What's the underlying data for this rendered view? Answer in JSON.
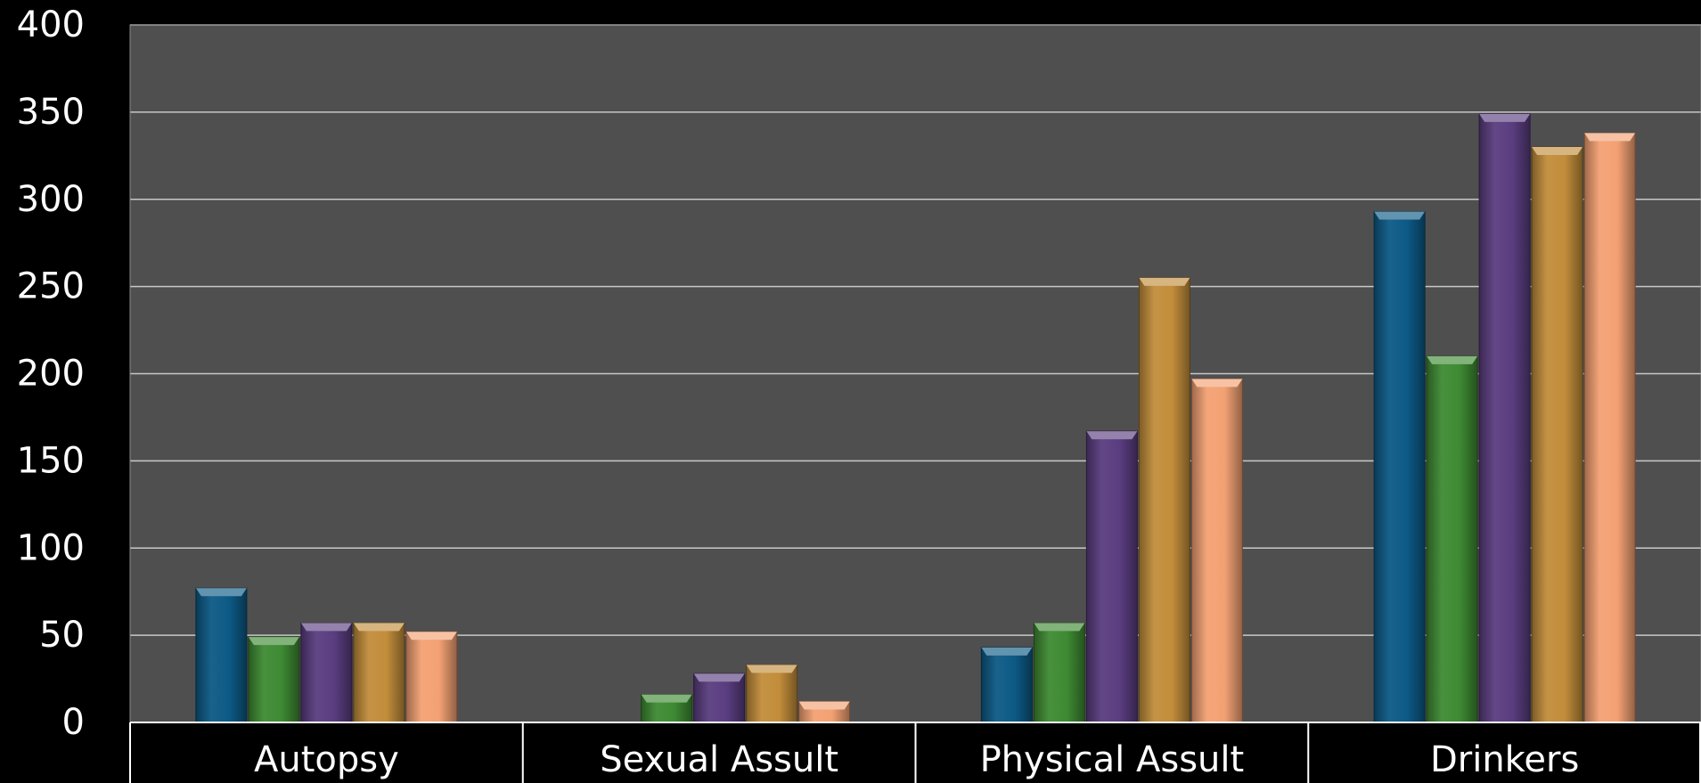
{
  "chart_data": {
    "type": "bar",
    "categories": [
      "Autopsy",
      "Sexual Assult",
      "Physical Assult",
      "Drinkers"
    ],
    "series": [
      {
        "values": [
          77,
          0,
          43,
          293
        ]
      },
      {
        "values": [
          49,
          16,
          57,
          210
        ]
      },
      {
        "values": [
          57,
          28,
          167,
          349
        ]
      },
      {
        "values": [
          57,
          33,
          255,
          330
        ]
      },
      {
        "values": [
          52,
          12,
          197,
          338
        ]
      }
    ],
    "y_ticks": [
      "0",
      "50",
      "100",
      "150",
      "200",
      "250",
      "300",
      "350",
      "400"
    ],
    "ylim": [
      0,
      400
    ],
    "grid": true,
    "legend": "none"
  },
  "colors": {
    "page_background": "#000000",
    "plot_background": "#4f4f4f",
    "gridline": "#c8c8c8",
    "text": "#ffffff",
    "series": [
      "#0d5a86",
      "#3e8a33",
      "#5a3d80",
      "#c28d3b",
      "#f3a173"
    ]
  }
}
